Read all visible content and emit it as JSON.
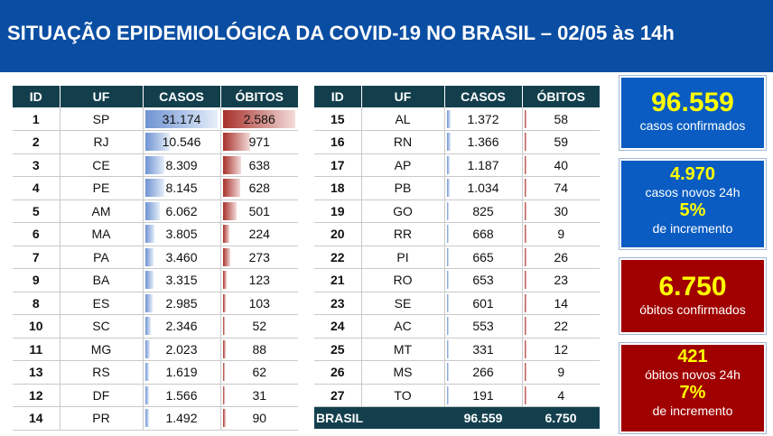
{
  "header": {
    "title": "SITUAÇÃO EPIDEMIOLÓGICA DA COVID-19 NO BRASIL – 02/05 às 14h"
  },
  "colors": {
    "header_bg": "#0a4ea3",
    "table_header_bg": "#133f4d",
    "blue_box": "#0a5cc2",
    "red_box": "#a00000",
    "highlight_text": "#ffff00",
    "casos_bar": "#6f93d3",
    "obitos_bar": "#a8302a"
  },
  "table_left": {
    "headers": [
      "ID",
      "UF",
      "CASOS",
      "ÓBITOS"
    ],
    "rows": [
      {
        "id": "1",
        "uf": "SP",
        "casos": "31.174",
        "obitos": "2.586",
        "casos_n": 31174,
        "obitos_n": 2586
      },
      {
        "id": "2",
        "uf": "RJ",
        "casos": "10.546",
        "obitos": "971",
        "casos_n": 10546,
        "obitos_n": 971
      },
      {
        "id": "3",
        "uf": "CE",
        "casos": "8.309",
        "obitos": "638",
        "casos_n": 8309,
        "obitos_n": 638
      },
      {
        "id": "4",
        "uf": "PE",
        "casos": "8.145",
        "obitos": "628",
        "casos_n": 8145,
        "obitos_n": 628
      },
      {
        "id": "5",
        "uf": "AM",
        "casos": "6.062",
        "obitos": "501",
        "casos_n": 6062,
        "obitos_n": 501
      },
      {
        "id": "6",
        "uf": "MA",
        "casos": "3.805",
        "obitos": "224",
        "casos_n": 3805,
        "obitos_n": 224
      },
      {
        "id": "7",
        "uf": "PA",
        "casos": "3.460",
        "obitos": "273",
        "casos_n": 3460,
        "obitos_n": 273
      },
      {
        "id": "9",
        "uf": "BA",
        "casos": "3.315",
        "obitos": "123",
        "casos_n": 3315,
        "obitos_n": 123
      },
      {
        "id": "8",
        "uf": "ES",
        "casos": "2.985",
        "obitos": "103",
        "casos_n": 2985,
        "obitos_n": 103
      },
      {
        "id": "10",
        "uf": "SC",
        "casos": "2.346",
        "obitos": "52",
        "casos_n": 2346,
        "obitos_n": 52
      },
      {
        "id": "11",
        "uf": "MG",
        "casos": "2.023",
        "obitos": "88",
        "casos_n": 2023,
        "obitos_n": 88
      },
      {
        "id": "13",
        "uf": "RS",
        "casos": "1.619",
        "obitos": "62",
        "casos_n": 1619,
        "obitos_n": 62
      },
      {
        "id": "12",
        "uf": "DF",
        "casos": "1.566",
        "obitos": "31",
        "casos_n": 1566,
        "obitos_n": 31
      },
      {
        "id": "14",
        "uf": "PR",
        "casos": "1.492",
        "obitos": "90",
        "casos_n": 1492,
        "obitos_n": 90
      }
    ]
  },
  "table_right": {
    "headers": [
      "ID",
      "UF",
      "CASOS",
      "ÓBITOS"
    ],
    "rows": [
      {
        "id": "15",
        "uf": "AL",
        "casos": "1.372",
        "obitos": "58",
        "casos_n": 1372,
        "obitos_n": 58
      },
      {
        "id": "16",
        "uf": "RN",
        "casos": "1.366",
        "obitos": "59",
        "casos_n": 1366,
        "obitos_n": 59
      },
      {
        "id": "17",
        "uf": "AP",
        "casos": "1.187",
        "obitos": "40",
        "casos_n": 1187,
        "obitos_n": 40
      },
      {
        "id": "18",
        "uf": "PB",
        "casos": "1.034",
        "obitos": "74",
        "casos_n": 1034,
        "obitos_n": 74
      },
      {
        "id": "19",
        "uf": "GO",
        "casos": "825",
        "obitos": "30",
        "casos_n": 825,
        "obitos_n": 30
      },
      {
        "id": "20",
        "uf": "RR",
        "casos": "668",
        "obitos": "9",
        "casos_n": 668,
        "obitos_n": 9
      },
      {
        "id": "22",
        "uf": "PI",
        "casos": "665",
        "obitos": "26",
        "casos_n": 665,
        "obitos_n": 26
      },
      {
        "id": "21",
        "uf": "RO",
        "casos": "653",
        "obitos": "23",
        "casos_n": 653,
        "obitos_n": 23
      },
      {
        "id": "23",
        "uf": "SE",
        "casos": "601",
        "obitos": "14",
        "casos_n": 601,
        "obitos_n": 14
      },
      {
        "id": "24",
        "uf": "AC",
        "casos": "553",
        "obitos": "22",
        "casos_n": 553,
        "obitos_n": 22
      },
      {
        "id": "25",
        "uf": "MT",
        "casos": "331",
        "obitos": "12",
        "casos_n": 331,
        "obitos_n": 12
      },
      {
        "id": "26",
        "uf": "MS",
        "casos": "266",
        "obitos": "9",
        "casos_n": 266,
        "obitos_n": 9
      },
      {
        "id": "27",
        "uf": "TO",
        "casos": "191",
        "obitos": "4",
        "casos_n": 191,
        "obitos_n": 4
      }
    ],
    "total": {
      "label": "BRASIL",
      "casos": "96.559",
      "obitos": "6.750"
    }
  },
  "scale": {
    "casos_max": 31174,
    "obitos_max": 2586
  },
  "summary": {
    "casos_confirmados": {
      "value": "96.559",
      "label": "casos confirmados"
    },
    "casos_novos": {
      "value": "4.970",
      "label": "casos novos 24h",
      "pct": "5%",
      "pct_label": "de incremento"
    },
    "obitos_confirmados": {
      "value": "6.750",
      "label": "óbitos confirmados"
    },
    "obitos_novos": {
      "value": "421",
      "label": "óbitos novos 24h",
      "pct": "7%",
      "pct_label": "de incremento"
    }
  }
}
